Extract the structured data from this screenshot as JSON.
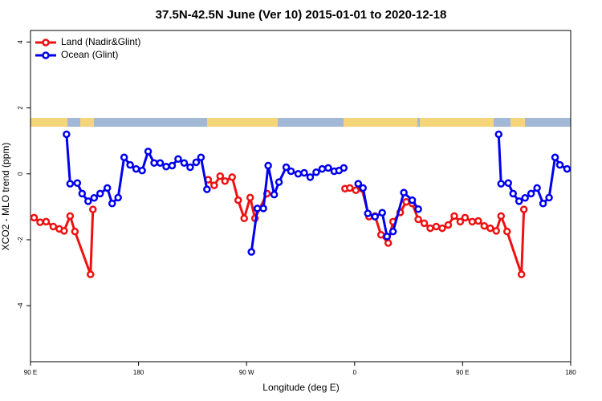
{
  "chart_data": {
    "type": "line",
    "title": "37.5N-42.5N June (Ver 10)   2015-01-01 to 2020-12-18",
    "xlabel": "Longitude (deg E)",
    "ylabel": "XCO2 - MLO trend (ppm)",
    "xlim": [
      90,
      540
    ],
    "ylim": [
      -5.7,
      4.35
    ],
    "xticks": [
      {
        "value": 90,
        "label": "90 E"
      },
      180,
      {
        "value": 270,
        "label": "90 W"
      },
      {
        "value": 360,
        "label": "0"
      },
      {
        "value": 450,
        "label": "90 E"
      },
      {
        "value": 540,
        "label": "180"
      }
    ],
    "yticks": [
      4,
      2,
      0,
      -2,
      -4
    ],
    "legend": "top-left",
    "series": [
      {
        "name": "Land (Nadir&Glint)",
        "color": "#ee1111",
        "x": [
          93,
          98,
          103,
          109,
          114,
          118,
          123,
          127,
          140,
          142,
          null,
          238,
          243,
          248,
          252,
          258,
          263,
          268,
          273,
          277,
          287,
          null,
          352,
          356,
          361,
          366,
          372,
          377,
          382,
          388,
          392,
          398,
          403,
          408,
          413,
          418,
          423,
          428,
          433,
          438,
          443,
          448,
          452,
          458,
          463,
          468,
          473,
          478,
          482,
          487,
          499,
          501
        ],
        "values": [
          -1.33,
          -1.47,
          -1.45,
          -1.6,
          -1.67,
          -1.73,
          -1.28,
          -1.75,
          -3.05,
          -1.08,
          null,
          -0.18,
          -0.35,
          -0.07,
          -0.22,
          -0.1,
          -0.8,
          -1.35,
          -0.72,
          -1.35,
          -0.6,
          null,
          -0.45,
          -0.43,
          -0.5,
          -0.45,
          -1.3,
          -1.28,
          -1.85,
          -2.1,
          -1.45,
          -1.17,
          -0.85,
          -0.9,
          -1.38,
          -1.5,
          -1.65,
          -1.6,
          -1.65,
          -1.55,
          -1.28,
          -1.45,
          -1.33,
          -1.45,
          -1.43,
          -1.58,
          -1.65,
          -1.73,
          -1.28,
          -1.75,
          -3.05,
          -1.08
        ]
      },
      {
        "name": "Ocean (Glint)",
        "color": "#0000ee",
        "x": [
          120,
          123,
          129,
          133,
          138,
          143,
          148,
          154,
          158,
          163,
          168,
          173,
          178,
          183,
          188,
          193,
          198,
          203,
          208,
          213,
          218,
          223,
          228,
          232,
          237,
          null,
          274,
          279,
          284,
          288,
          293,
          297,
          303,
          307,
          313,
          318,
          323,
          328,
          333,
          338,
          343,
          347,
          351,
          null,
          363,
          367,
          371,
          377,
          383,
          387,
          392,
          401,
          408,
          413,
          null,
          480,
          482,
          488,
          492,
          497,
          502,
          507,
          512,
          517,
          522,
          527,
          531,
          537
        ],
        "values": [
          1.2,
          -0.3,
          -0.28,
          -0.6,
          -0.83,
          -0.73,
          -0.6,
          -0.43,
          -0.9,
          -0.72,
          0.5,
          0.27,
          0.15,
          0.1,
          0.68,
          0.33,
          0.33,
          0.22,
          0.25,
          0.45,
          0.33,
          0.2,
          0.35,
          0.5,
          -0.47,
          null,
          -2.37,
          -1.05,
          -1.05,
          0.25,
          -0.63,
          -0.25,
          0.2,
          0.08,
          0,
          0.03,
          -0.1,
          0.05,
          0.15,
          0.18,
          0.08,
          0.1,
          0.18,
          null,
          -0.3,
          -0.43,
          -1.2,
          -1.3,
          -1.18,
          -1.9,
          -1.75,
          -0.57,
          -0.8,
          -1.07,
          null,
          1.2,
          -0.3,
          -0.28,
          -0.6,
          -0.83,
          -0.73,
          -0.6,
          -0.43,
          -0.9,
          -0.72,
          0.5,
          0.27,
          0.15
        ]
      }
    ]
  }
}
